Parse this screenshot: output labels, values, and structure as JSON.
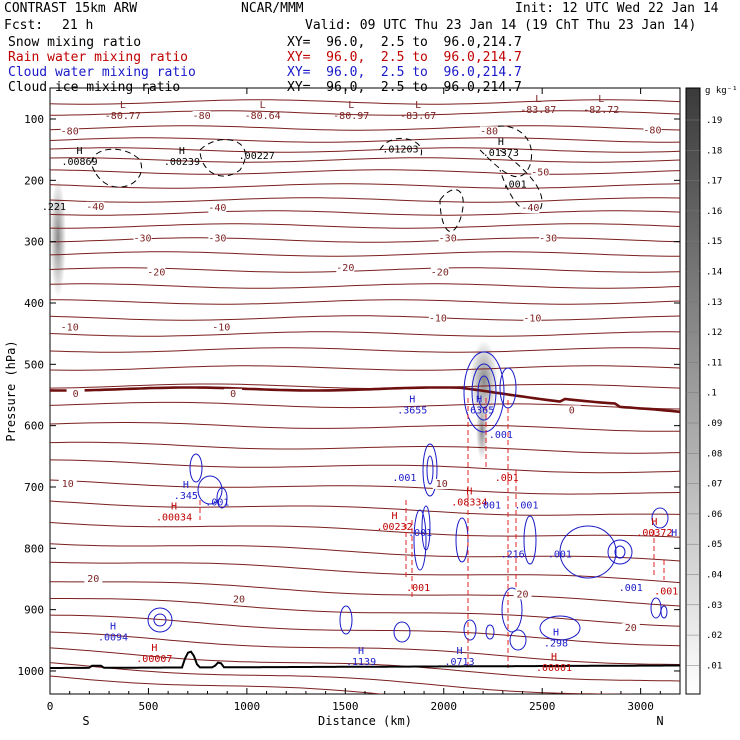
{
  "header": {
    "model": "CONTRAST 15km ARW",
    "center": "NCAR/MMM",
    "init": "Init: 12 UTC Wed 22 Jan 14",
    "fcst_label": "Fcst:",
    "fcst_value": "21 h",
    "valid": "Valid: 09 UTC Thu 23 Jan 14 (19 ChT Thu 23 Jan 14)",
    "fields": [
      {
        "name": "Snow mixing ratio",
        "xy": "XY=  96.0,  2.5 to  96.0,214.7",
        "color": "#000000"
      },
      {
        "name": "Rain water mixing ratio",
        "xy": "XY=  96.0,  2.5 to  96.0,214.7",
        "color": "#c00000"
      },
      {
        "name": "Cloud water mixing ratio",
        "xy": "XY=  96.0,  2.5 to  96.0,214.7",
        "color": "#1a1ac8"
      },
      {
        "name": "Cloud ice mixing ratio",
        "xy": "XY=  96.0,  2.5 to  96.0,214.7",
        "color": "#000000"
      }
    ]
  },
  "chart_data": {
    "type": "cross-section",
    "xlabel": "Distance (km)",
    "ylabel": "Pressure (hPa)",
    "xlim": [
      0,
      3200
    ],
    "ylim": [
      1050,
      50
    ],
    "x_ticks": [
      0,
      500,
      1000,
      1500,
      2000,
      2500,
      3000
    ],
    "y_ticks": [
      100,
      200,
      300,
      400,
      500,
      600,
      700,
      800,
      900,
      1000
    ],
    "end_labels": {
      "left": "S",
      "right": "N"
    },
    "colorbar": {
      "unit": "g kg⁻¹",
      "ticks": [
        ".01",
        ".02",
        ".03",
        ".04",
        ".05",
        ".06",
        ".07",
        ".08",
        ".09",
        ".1",
        ".11",
        ".12",
        ".13",
        ".14",
        ".15",
        ".16",
        ".17",
        ".18",
        ".19"
      ]
    },
    "temperature_contour_labels": [
      {
        "x": 100,
        "p": 125,
        "t": "-80"
      },
      {
        "x": 770,
        "p": 100,
        "t": "-80"
      },
      {
        "x": 3060,
        "p": 124,
        "t": "-80"
      },
      {
        "x": 2230,
        "p": 125,
        "t": "-80"
      },
      {
        "x": 2490,
        "p": 192,
        "t": "-50"
      },
      {
        "x": 2440,
        "p": 250,
        "t": "-40"
      },
      {
        "x": 230,
        "p": 248,
        "t": "-40"
      },
      {
        "x": 850,
        "p": 250,
        "t": "-40"
      },
      {
        "x": 470,
        "p": 300,
        "t": "-30"
      },
      {
        "x": 850,
        "p": 300,
        "t": "-30"
      },
      {
        "x": 2020,
        "p": 300,
        "t": "-30"
      },
      {
        "x": 2530,
        "p": 300,
        "t": "-30"
      },
      {
        "x": 540,
        "p": 355,
        "t": "-20"
      },
      {
        "x": 1500,
        "p": 348,
        "t": "-20"
      },
      {
        "x": 1980,
        "p": 355,
        "t": "-20"
      },
      {
        "x": 100,
        "p": 445,
        "t": "-10"
      },
      {
        "x": 870,
        "p": 445,
        "t": "-10"
      },
      {
        "x": 1970,
        "p": 430,
        "t": "-10"
      },
      {
        "x": 2450,
        "p": 430,
        "t": "-10"
      },
      {
        "x": 130,
        "p": 553,
        "t": "0"
      },
      {
        "x": 930,
        "p": 553,
        "t": "0"
      },
      {
        "x": 2650,
        "p": 580,
        "t": "0"
      },
      {
        "x": 90,
        "p": 700,
        "t": "10"
      },
      {
        "x": 1990,
        "p": 700,
        "t": "10"
      },
      {
        "x": 220,
        "p": 855,
        "t": "20"
      },
      {
        "x": 960,
        "p": 888,
        "t": "20"
      },
      {
        "x": 2400,
        "p": 880,
        "t": "20"
      },
      {
        "x": 2950,
        "p": 935,
        "t": "20"
      }
    ],
    "max_min_labels": [
      {
        "x": 370,
        "p": 100,
        "mark": "L",
        "value": "-80.77",
        "color": "#7b1f1f"
      },
      {
        "x": 1080,
        "p": 100,
        "mark": "L",
        "value": "-80.64",
        "color": "#7b1f1f"
      },
      {
        "x": 1530,
        "p": 100,
        "mark": "L",
        "value": "-80.97",
        "color": "#7b1f1f"
      },
      {
        "x": 1870,
        "p": 100,
        "mark": "L",
        "value": "-83.67",
        "color": "#7b1f1f"
      },
      {
        "x": 2480,
        "p": 90,
        "mark": "L",
        "value": "-83.87",
        "color": "#7b1f1f"
      },
      {
        "x": 2800,
        "p": 90,
        "mark": "L",
        "value": "-82.72",
        "color": "#7b1f1f"
      },
      {
        "x": 150,
        "p": 175,
        "mark": "H",
        "value": ".00869",
        "color": "#000000"
      },
      {
        "x": 670,
        "p": 175,
        "mark": "H",
        "value": ".00239",
        "color": "#000000"
      },
      {
        "x": 1050,
        "p": 165,
        "mark": "",
        "value": ".00227",
        "color": "#000000"
      },
      {
        "x": 1780,
        "p": 155,
        "mark": "",
        "value": ".01203",
        "color": "#000000"
      },
      {
        "x": 2290,
        "p": 160,
        "mark": "H",
        "value": ".01373",
        "color": "#000000"
      },
      {
        "x": 2360,
        "p": 212,
        "mark": "",
        "value": ".001",
        "color": "#000000"
      },
      {
        "x": 20,
        "p": 248,
        "mark": "",
        "value": ".221",
        "color": "#000000"
      },
      {
        "x": 1840,
        "p": 580,
        "mark": "H",
        "value": ".3655",
        "color": "#1a1ac8"
      },
      {
        "x": 2180,
        "p": 580,
        "mark": "H",
        "value": ".6365",
        "color": "#1a1ac8"
      },
      {
        "x": 2290,
        "p": 620,
        "mark": "",
        "value": ".001",
        "color": "#1a1ac8"
      },
      {
        "x": 1800,
        "p": 690,
        "mark": "",
        "value": ".001",
        "color": "#1a1ac8"
      },
      {
        "x": 2320,
        "p": 690,
        "mark": "",
        "value": ".001",
        "color": "#c00000"
      },
      {
        "x": 690,
        "p": 720,
        "mark": "H",
        "value": ".345",
        "color": "#1a1ac8"
      },
      {
        "x": 850,
        "p": 730,
        "mark": "",
        "value": ".001",
        "color": "#1a1ac8"
      },
      {
        "x": 630,
        "p": 755,
        "mark": "H",
        "value": ".00034",
        "color": "#c00000"
      },
      {
        "x": 2130,
        "p": 730,
        "mark": "H",
        "value": ".08334",
        "color": "#c00000"
      },
      {
        "x": 2230,
        "p": 735,
        "mark": "",
        "value": ".001",
        "color": "#1a1ac8"
      },
      {
        "x": 2420,
        "p": 735,
        "mark": "",
        "value": ".001",
        "color": "#1a1ac8"
      },
      {
        "x": 1750,
        "p": 770,
        "mark": "H",
        "value": ".00232",
        "color": "#c00000"
      },
      {
        "x": 1880,
        "p": 780,
        "mark": "",
        "value": ".001",
        "color": "#1a1ac8"
      },
      {
        "x": 2350,
        "p": 815,
        "mark": "",
        "value": ".216",
        "color": "#1a1ac8"
      },
      {
        "x": 2590,
        "p": 815,
        "mark": "",
        "value": ".001",
        "color": "#1a1ac8"
      },
      {
        "x": 3070,
        "p": 780,
        "mark": "H",
        "value": ".00372",
        "color": "#c00000"
      },
      {
        "x": 3170,
        "p": 780,
        "mark": "",
        "value": "H",
        "color": "#1a1ac8"
      },
      {
        "x": 1870,
        "p": 870,
        "mark": "",
        "value": ".001",
        "color": "#c00000"
      },
      {
        "x": 2950,
        "p": 870,
        "mark": "",
        "value": ".001",
        "color": "#1a1ac8"
      },
      {
        "x": 3130,
        "p": 875,
        "mark": "",
        "value": ".001",
        "color": "#c00000"
      },
      {
        "x": 320,
        "p": 950,
        "mark": "H",
        "value": ".0094",
        "color": "#1a1ac8"
      },
      {
        "x": 530,
        "p": 985,
        "mark": "H",
        "value": ".00007",
        "color": "#c00000"
      },
      {
        "x": 1580,
        "p": 990,
        "mark": "H",
        "value": ".1139",
        "color": "#1a1ac8"
      },
      {
        "x": 2080,
        "p": 990,
        "mark": "H",
        "value": ".0713",
        "color": "#1a1ac8"
      },
      {
        "x": 2570,
        "p": 960,
        "mark": "H",
        "value": ".298",
        "color": "#1a1ac8"
      },
      {
        "x": 2560,
        "p": 1000,
        "mark": "H",
        "value": ".00001",
        "color": "#c00000"
      }
    ]
  },
  "colors": {
    "temperature": "#7b1f1f",
    "freezing": "#6e0f0f",
    "rain": "#e02020",
    "cloud_water": "#1a1ac8",
    "terrain": "#000000"
  }
}
